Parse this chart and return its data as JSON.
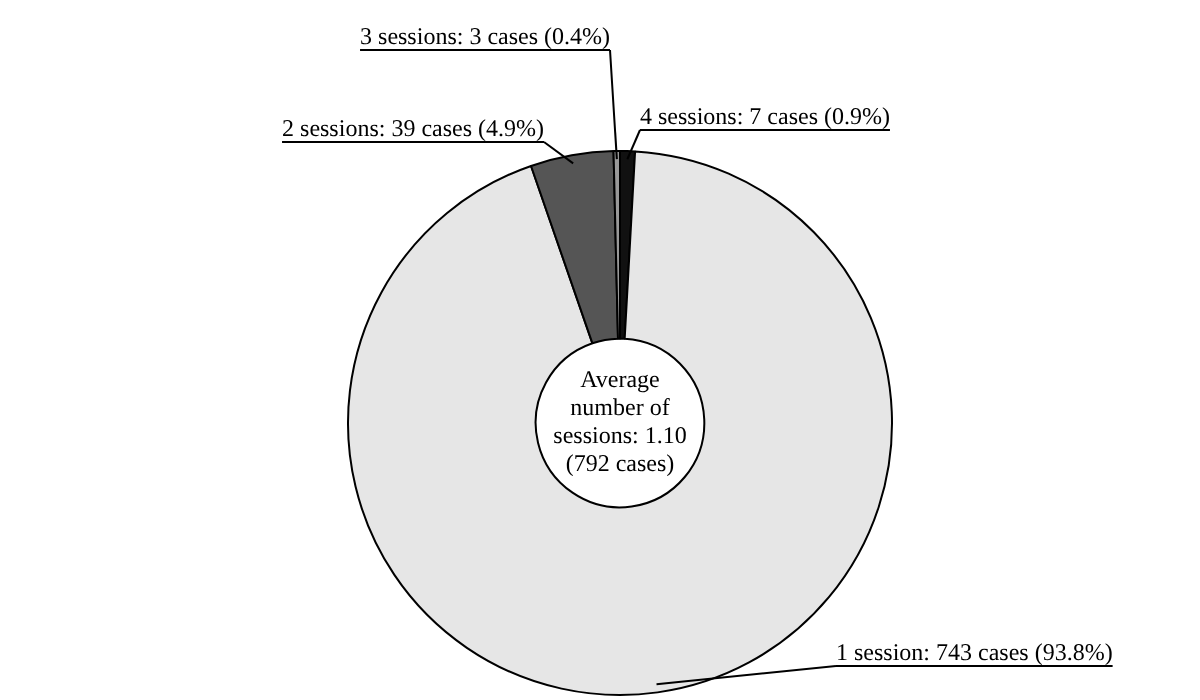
{
  "chart_data": {
    "type": "donut",
    "categories": [
      "4 sessions: 7 cases (0.9%)",
      "1 session: 743 cases (93.8%)",
      "2 sessions: 39 cases (4.9%)",
      "3 sessions: 3 cases (0.4%)"
    ],
    "values": [
      7,
      743,
      39,
      3
    ],
    "colors": [
      "#111111",
      "#e6e6e6",
      "#555555",
      "#999999"
    ],
    "annotations": [
      "Average number of sessions: 1.10 (792 cases)"
    ],
    "legend": false
  }
}
